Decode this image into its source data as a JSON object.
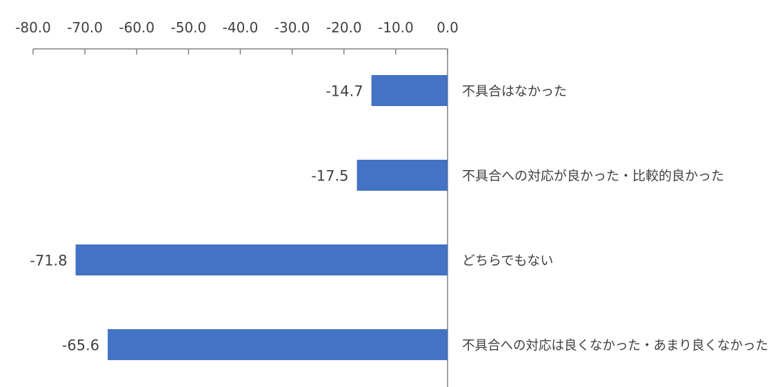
{
  "chart_data": {
    "type": "bar",
    "orientation": "horizontal",
    "categories": [
      "不具合はなかった",
      "不具合への対応が良かった・比較的良かった",
      "どちらでもない",
      "不具合への対応は良くなかった・あまり良くなかった"
    ],
    "values": [
      -14.7,
      -17.5,
      -71.8,
      -65.6
    ],
    "value_labels": [
      "-14.7",
      "-17.5",
      "-71.8",
      "-65.6"
    ],
    "xlim": [
      -80,
      0
    ],
    "x_ticks": [
      "-80.0",
      "-70.0",
      "-60.0",
      "-50.0",
      "-40.0",
      "-30.0",
      "-20.0",
      "-10.0",
      "0.0"
    ],
    "x_axis_position": "top",
    "grid": false,
    "legend": "none",
    "bar_color": "#4472c4"
  }
}
